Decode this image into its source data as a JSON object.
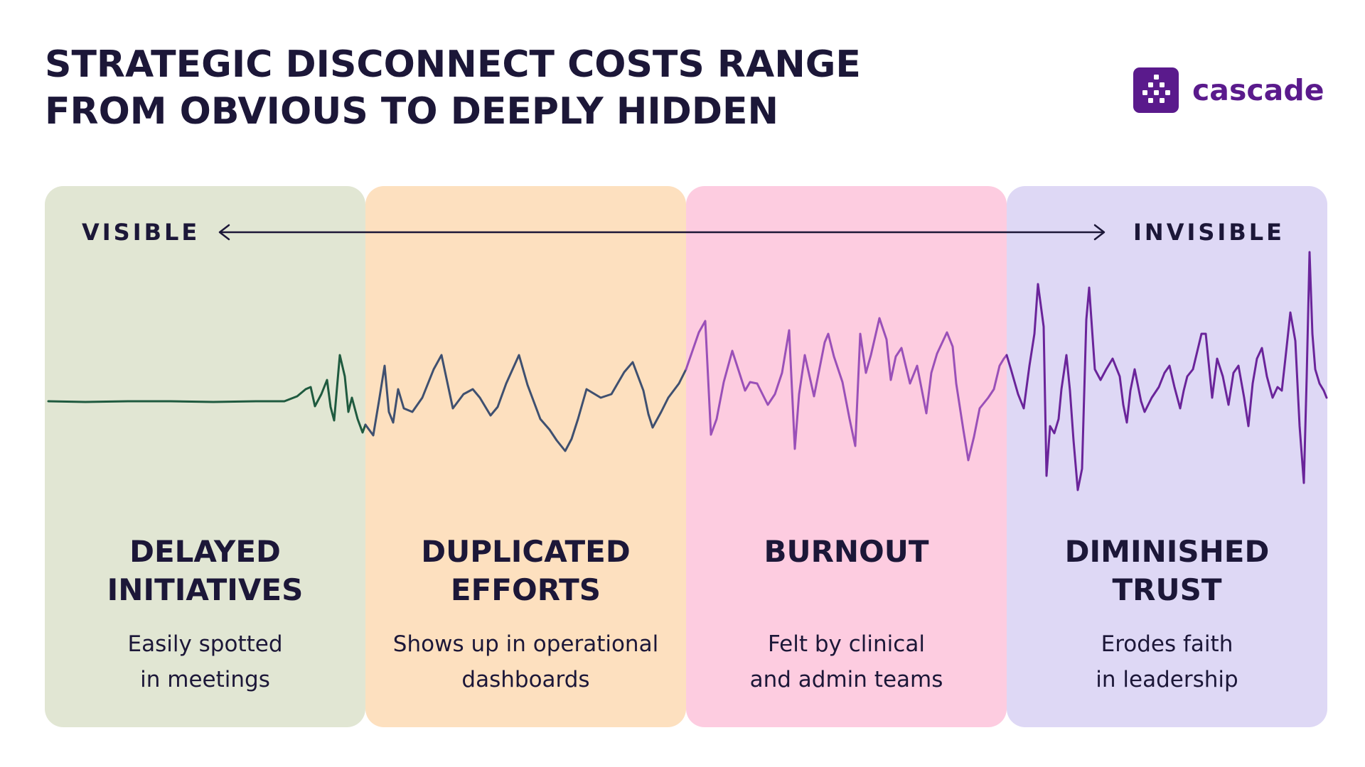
{
  "title": {
    "line1": "STRATEGIC DISCONNECT COSTS RANGE",
    "line2": "FROM OBVIOUS TO DEEPLY HIDDEN"
  },
  "brand": {
    "name": "cascade",
    "logo_icon": "cascade-logo-icon",
    "color": "#5a1a8c"
  },
  "scale": {
    "left_label": "VISIBLE",
    "right_label": "INVISIBLE"
  },
  "panels": [
    {
      "heading": [
        "DELAYED",
        "INITIATIVES"
      ],
      "description": [
        "Easily spotted",
        "in meetings"
      ],
      "background": "#e1e6d3",
      "wave_color": "#1f5a3f"
    },
    {
      "heading": [
        "DUPLICATED",
        "EFFORTS"
      ],
      "description": [
        "Shows up in operational",
        "dashboards"
      ],
      "background": "#fde0bf",
      "wave_color": "#3f5070"
    },
    {
      "heading": [
        "BURNOUT"
      ],
      "description": [
        "Felt by clinical",
        "and admin teams"
      ],
      "background": "#fdcce0",
      "wave_color": "#9a50b8"
    },
    {
      "heading": [
        "DIMINISHED",
        "TRUST"
      ],
      "description": [
        "Erodes faith",
        "in leadership"
      ],
      "background": "#ded8f5",
      "wave_color": "#6a249a"
    }
  ]
}
